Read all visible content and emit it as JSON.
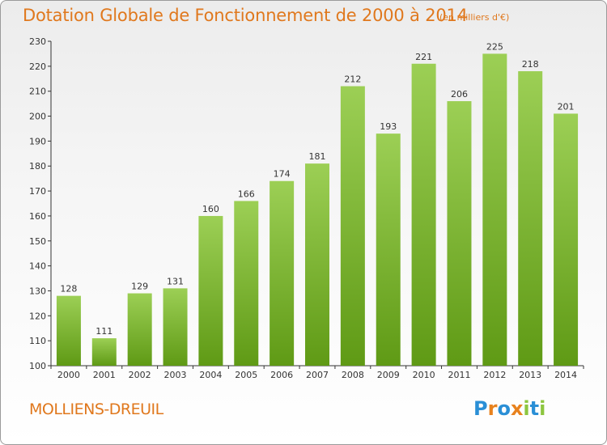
{
  "title": "Dotation Globale de Fonctionnement de 2000 à 2014",
  "subtitle": "(en milliers d'€)",
  "commune": "MOLLIENS-DREUIL",
  "logo": {
    "letters": [
      "P",
      "r",
      "o",
      "x",
      "i",
      "t",
      "i"
    ],
    "colors": [
      "#2a8fd6",
      "#e8821e",
      "#2a8fd6",
      "#e8821e",
      "#8dc63f",
      "#2a8fd6",
      "#8dc63f"
    ]
  },
  "colors": {
    "bar_top": "#9ccf55",
    "bar_bottom": "#5f9a15",
    "title": "#e0781d"
  },
  "chart_data": {
    "type": "bar",
    "categories": [
      "2000",
      "2001",
      "2002",
      "2003",
      "2004",
      "2005",
      "2006",
      "2007",
      "2008",
      "2009",
      "2010",
      "2011",
      "2012",
      "2013",
      "2014"
    ],
    "values": [
      128,
      111,
      129,
      131,
      160,
      166,
      174,
      181,
      212,
      193,
      221,
      206,
      225,
      218,
      201
    ],
    "yticks": [
      100,
      110,
      120,
      130,
      140,
      150,
      160,
      170,
      180,
      190,
      200,
      210,
      220,
      230
    ],
    "ylim": [
      100,
      230
    ],
    "grid": false
  }
}
